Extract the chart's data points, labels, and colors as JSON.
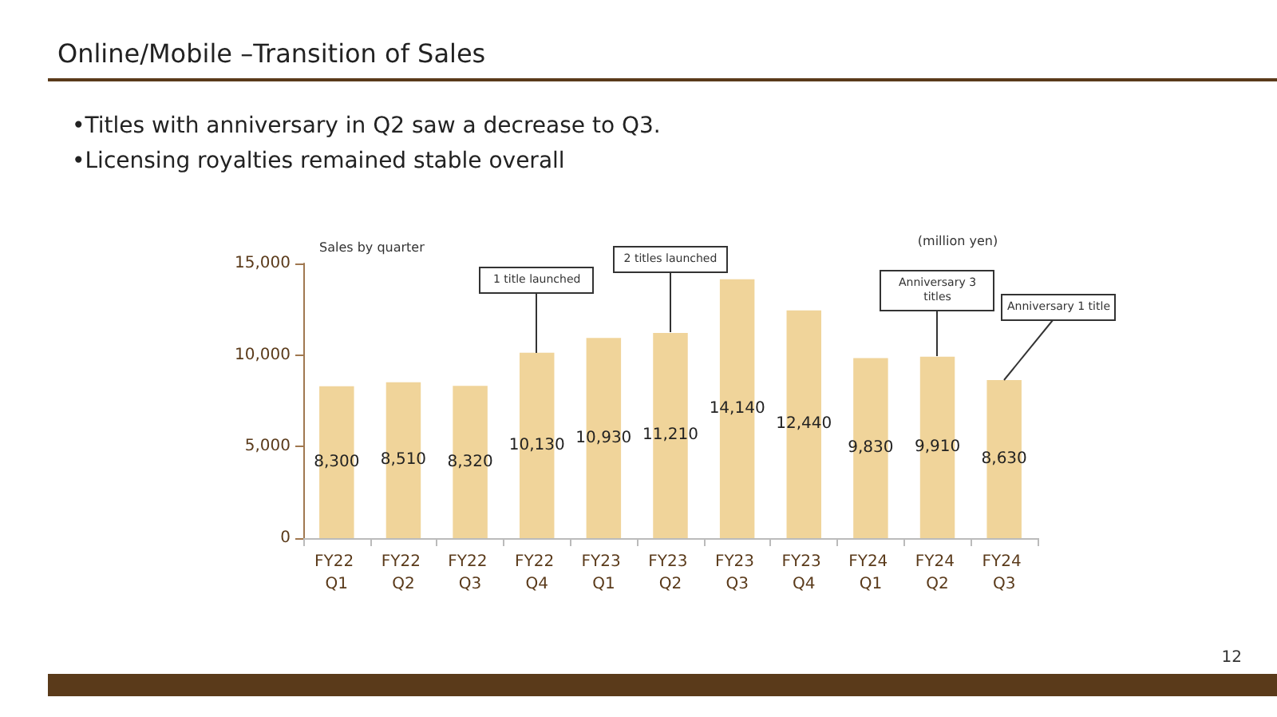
{
  "chart_data": {
    "type": "bar",
    "title": "Online/Mobile –Transition of Sales",
    "subtitle": "•Titles with anniversary in Q2 saw a decrease to Q3.\n•Licensing royalties remained stable overall",
    "ylabel": "Sales by quarter",
    "categories": [
      "FY22 Q1",
      "FY22 Q2",
      "FY22 Q3",
      "FY22 Q4",
      "FY23 Q1",
      "FY23 Q2",
      "FY23 Q3",
      "FY23 Q4",
      "FY24 Q1",
      "FY24 Q2",
      "FY24 Q3"
    ],
    "values": [
      8300,
      8510,
      8320,
      10130,
      10930,
      11210,
      14140,
      12440,
      9830,
      9910,
      8630
    ],
    "value_labels": [
      "8,300",
      "8,510",
      "8,320",
      "10,130",
      "10,930",
      "11,210",
      "14,140",
      "12,440",
      "9,830",
      "9,910",
      "8,630"
    ],
    "color": "#f0d49a",
    "ylim": [
      0,
      15000
    ],
    "yticks": [
      0,
      {
        "value": 5000,
        "label": "5,000"
      },
      {
        "value": 10000,
        "label": "10,000"
      },
      {
        "value": 15000,
        "label": "15,000"
      }
    ],
    "grid": false,
    "annotations": [
      {
        "text": "1 title launched",
        "x": "FY22 Q4",
        "y": 10130
      },
      {
        "text": "2 titles launched",
        "x": "FY23 Q2",
        "y": 11210
      },
      {
        "text": "Anniversary 3 titles",
        "x": "FY24 Q2",
        "y": 9910
      },
      {
        "text": "Anniversary 1 title",
        "x": "FY24 Q3",
        "y": 8630
      },
      "(million yen)",
      "12"
    ]
  }
}
